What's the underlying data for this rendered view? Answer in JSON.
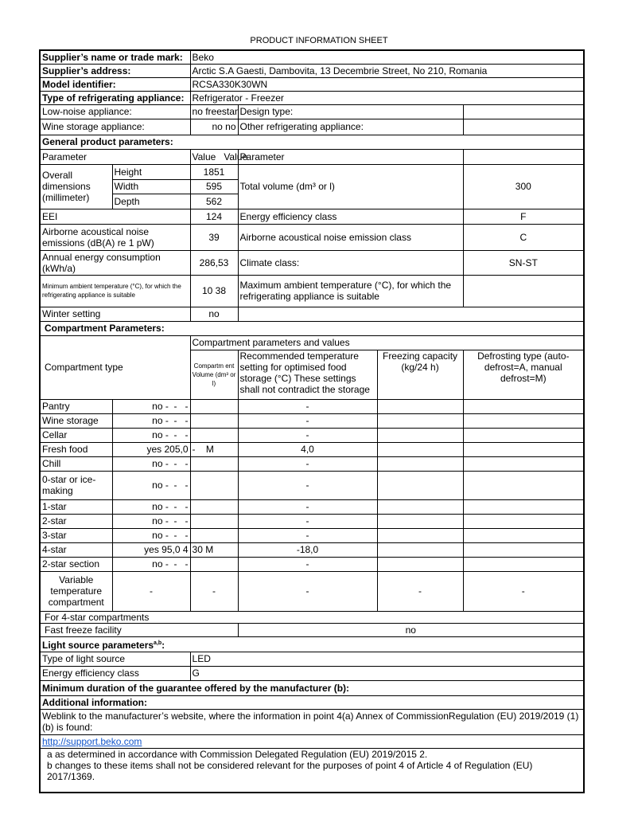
{
  "title": "PRODUCT INFORMATION SHEET",
  "supplier": {
    "name_label": "Supplier’s name or trade mark:",
    "name": "Beko",
    "address_label": "Supplier’s address:",
    "address": "Arctic S.A  Gaesti, Dambovita, 13 Decembrie Street, No 210, Romania",
    "model_label": "Model identifier:",
    "model": "RCSA330K30WN",
    "type_label": "Type of refrigerating appliance:",
    "type": "Refrigerator - Freezer"
  },
  "low_noise": {
    "label": "Low-noise appliance:",
    "value": "no freestanding",
    "design_label": "Design type:"
  },
  "wine": {
    "label": "Wine storage appliance:",
    "value": "no no",
    "other_label": "Other refrigerating appliance:"
  },
  "general": {
    "heading": "General product parameters:",
    "col_param": "Parameter",
    "col_value": "Value   Value",
    "col_param2": "Parameter",
    "dims_label": "Overall dimensions (millimeter)",
    "height_label": "Height",
    "height": "1851",
    "width_label": "Width",
    "width": "595",
    "depth_label": "Depth",
    "depth": "562",
    "volume_label": "Total volume (dm³ or l)",
    "volume": "300",
    "eei_label": "EEI",
    "eei": "124",
    "eec_label": "Energy efficiency class",
    "eec": "F",
    "noise_label": "Airborne acoustical noise emissions (dB(A) re 1 pW)",
    "noise": "39",
    "noise_class_label": "Airborne acoustical noise emission class",
    "noise_class": "C",
    "energy_label": "Annual energy consumption (kWh/a)",
    "energy": "286,53",
    "climate_label": "Climate class:",
    "climate": "SN-ST",
    "min_temp_label": "Minimum ambient temperature (°C), for which the refrigerating appliance is suitable",
    "min_temp": "10 38",
    "max_temp_label": "Maximum ambient temperature (°C), for which the refrigerating appliance is suitable",
    "winter_label": "Winter setting",
    "winter": "no"
  },
  "compartments": {
    "heading": "Compartment Parameters:",
    "type_header": "Compartment type",
    "values_header": "Compartment parameters and values",
    "volume_header": "Compartm ent Volume (dm³ or l)",
    "temp_header": "Recommended temperature setting for optimised food storage (°C) These settings shall not contradict the storage",
    "freezing_header": "Freezing capacity (kg/24 h)",
    "defrost_header": "Defrosting type (auto-defrost=A, manual defrost=M)",
    "rows": [
      {
        "name": "Pantry",
        "present": "no -  -   -",
        "volume": "",
        "temp": "-"
      },
      {
        "name": "Wine storage",
        "present": "no -  -   -",
        "volume": "",
        "temp": "-"
      },
      {
        "name": "Cellar",
        "present": "no -  -   -",
        "volume": "",
        "temp": "-"
      },
      {
        "name": "Fresh food",
        "present": "yes 205,0",
        "volume": "-    M",
        "temp": "4,0"
      },
      {
        "name": "Chill",
        "present": "no -  -   -",
        "volume": "",
        "temp": "-"
      },
      {
        "name": "0-star or ice-making",
        "present": "no -  -   -",
        "volume": "",
        "temp": "-"
      },
      {
        "name": "1-star",
        "present": "no -  -   -",
        "volume": "",
        "temp": "-"
      },
      {
        "name": "2-star",
        "present": "no -  -   -",
        "volume": "",
        "temp": "-"
      },
      {
        "name": "3-star",
        "present": "no -  -   -",
        "volume": "",
        "temp": "-"
      },
      {
        "name": "4-star",
        "present": "yes 95,0 4",
        "volume": "30 M",
        "temp": "-18,0"
      },
      {
        "name": "2-star section",
        "present": "no -  -   -",
        "volume": "",
        "temp": "-"
      }
    ],
    "variable": {
      "name": "Variable temperature compartment",
      "c2": "-",
      "c3": "-",
      "c4": "-",
      "c5": "-",
      "c6": "-"
    },
    "four_star": "For 4-star compartments",
    "fast_freeze_label": "Fast freeze facility",
    "fast_freeze": "no"
  },
  "light": {
    "heading": "Light source parameters",
    "sup": "a,b",
    "colon": ":",
    "type_label": "Type of light source",
    "type": "LED",
    "eec_label": "Energy efficiency class",
    "eec": "G"
  },
  "guarantee": "Minimum duration of the guarantee offered by the manufacturer (b):",
  "additional": {
    "heading": "Additional information:",
    "weblink_text": "Weblink to the manufacturer’s website, where the information in point 4(a) Annex of CommissionRegulation (EU) 2019/2019 (1)(b) is found:",
    "link": "http://support.beko.com",
    "note_a": "a as determined in accordance with Commission Delegated Regulation (EU) 2019/2015 2.",
    "note_b": "b changes to these items shall not be considered relevant for the purposes of point 4 of Article 4 of Regulation (EU) 2017/1369."
  }
}
